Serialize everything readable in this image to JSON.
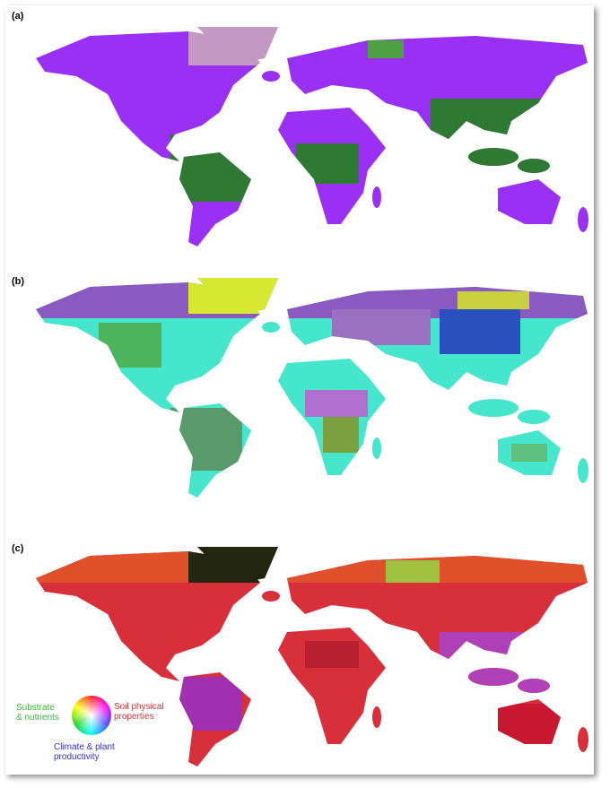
{
  "panels": [
    {
      "label": "(a)"
    },
    {
      "label": "(b)"
    },
    {
      "label": "(c)"
    }
  ],
  "legend": {
    "substrate": [
      "Substrate",
      "& nutrients"
    ],
    "soil": [
      "Soil physical",
      "properties"
    ],
    "climate": [
      "Climate & plant",
      "productivity"
    ]
  }
}
